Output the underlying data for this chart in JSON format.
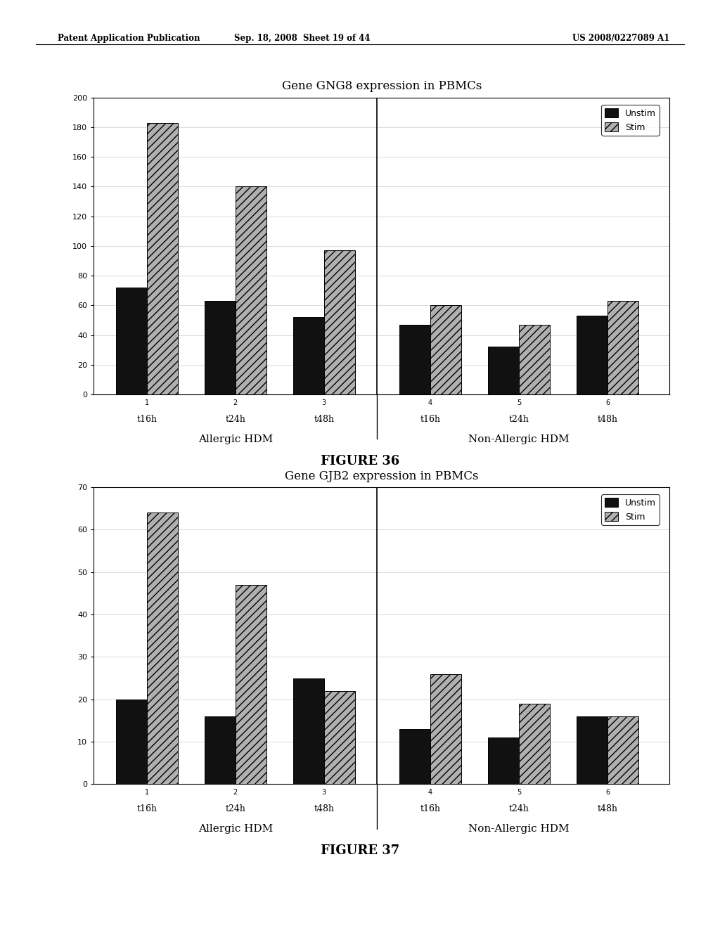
{
  "fig36": {
    "title": "Gene GNG8 expression in PBMCs",
    "figure_label": "FIGURE 36",
    "ylim": [
      0,
      200
    ],
    "yticks": [
      0,
      20,
      40,
      60,
      80,
      100,
      120,
      140,
      160,
      180,
      200
    ],
    "allergic_unstim": [
      72,
      63,
      52
    ],
    "allergic_stim": [
      183,
      140,
      97
    ],
    "nonallergic_unstim": [
      47,
      32,
      53
    ],
    "nonallergic_stim": [
      60,
      47,
      63
    ],
    "group_labels": [
      "t16h",
      "t24h",
      "t48h"
    ],
    "group_numbers_allergic": [
      "1",
      "2",
      "3"
    ],
    "group_numbers_nonallergic": [
      "4",
      "5",
      "6"
    ],
    "xlabel_left": "Allergic HDM",
    "xlabel_right": "Non-Allergic HDM"
  },
  "fig37": {
    "title": "Gene GJB2 expression in PBMCs",
    "figure_label": "FIGURE 37",
    "ylim": [
      0,
      70
    ],
    "yticks": [
      0,
      10,
      20,
      30,
      40,
      50,
      60,
      70
    ],
    "allergic_unstim": [
      20,
      16,
      25
    ],
    "allergic_stim": [
      64,
      47,
      22
    ],
    "nonallergic_unstim": [
      13,
      11,
      16
    ],
    "nonallergic_stim": [
      26,
      19,
      16
    ],
    "group_labels": [
      "t16h",
      "t24h",
      "t48h"
    ],
    "group_numbers_allergic": [
      "1",
      "2",
      "3"
    ],
    "group_numbers_nonallergic": [
      "4",
      "5",
      "6"
    ],
    "xlabel_left": "Allergic HDM",
    "xlabel_right": "Non-Allergic HDM"
  },
  "unstim_color": "#111111",
  "stim_color": "#b0b0b0",
  "stim_hatch": "///",
  "bar_width": 0.35,
  "header_left": "Patent Application Publication",
  "header_mid": "Sep. 18, 2008  Sheet 19 of 44",
  "header_right": "US 2008/0227089 A1",
  "bg_color": "#ffffff",
  "page_color": "#ffffff",
  "group_x": [
    0.7,
    1.7,
    2.7,
    3.9,
    4.9,
    5.9
  ],
  "divider_x": 3.3,
  "xlim": [
    0.1,
    6.6
  ]
}
